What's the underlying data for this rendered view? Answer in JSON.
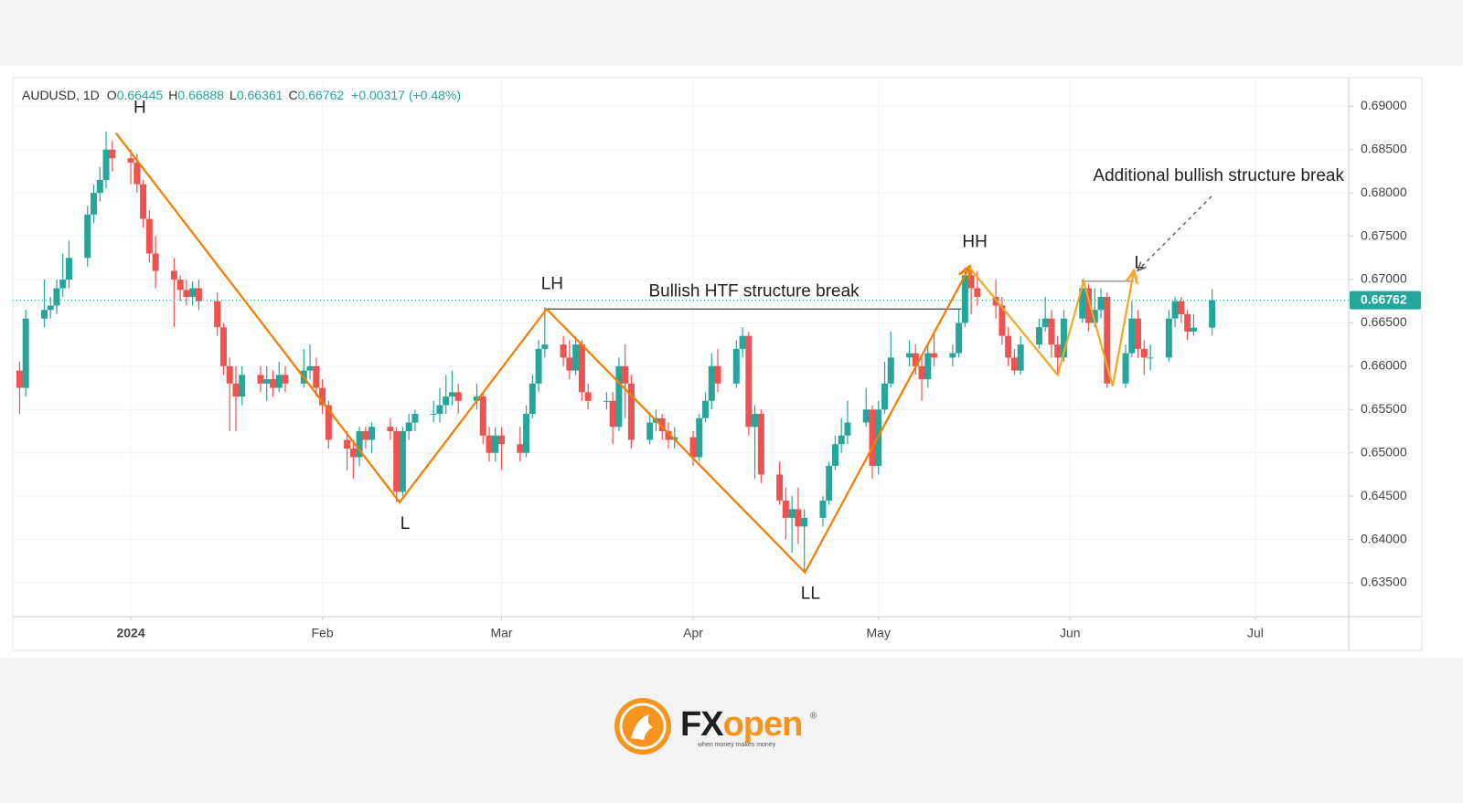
{
  "chart_data": {
    "type": "candlestick",
    "symbol": "AUDUSD, 1D",
    "ohlc": [
      {
        "label": "O",
        "value": 0.66445
      },
      {
        "label": "H",
        "value": 0.66888
      },
      {
        "label": "L",
        "value": 0.66361
      },
      {
        "label": "C",
        "value": 0.66762
      }
    ],
    "change": "+0.00317 (+0.48%)",
    "up_color": "#26a69a",
    "down_color": "#ef5350",
    "grid": true,
    "xlim": [
      -19.1,
      197.1
    ],
    "xticks": [
      {
        "value": 0,
        "label": "2024"
      },
      {
        "value": 31,
        "label": "Feb"
      },
      {
        "value": 60,
        "label": "Mar"
      },
      {
        "value": 91,
        "label": "Apr"
      },
      {
        "value": 121,
        "label": "May"
      },
      {
        "value": 152,
        "label": "Jun"
      },
      {
        "value": 182,
        "label": "Jul"
      }
    ],
    "ylim": [
      0.6311,
      0.6933
    ],
    "yticks": [
      {
        "value": 0.635,
        "label": "0.63500"
      },
      {
        "value": 0.64,
        "label": "0.64000"
      },
      {
        "value": 0.645,
        "label": "0.64500"
      },
      {
        "value": 0.65,
        "label": "0.65000"
      },
      {
        "value": 0.655,
        "label": "0.65500"
      },
      {
        "value": 0.66,
        "label": "0.66000"
      },
      {
        "value": 0.665,
        "label": "0.66500"
      },
      {
        "value": 0.67,
        "label": "0.67000"
      },
      {
        "value": 0.675,
        "label": "0.67500"
      },
      {
        "value": 0.68,
        "label": "0.68000"
      },
      {
        "value": 0.685,
        "label": "0.68500"
      },
      {
        "value": 0.69,
        "label": "0.69000"
      }
    ],
    "last_price": 0.66762,
    "x": [
      -18,
      -17,
      -14,
      -13,
      -12,
      -11,
      -10,
      -7,
      -6,
      -5,
      -4,
      -3,
      0,
      1,
      2,
      3,
      4,
      7,
      8,
      9,
      10,
      11,
      14,
      15,
      16,
      17,
      18,
      21,
      22,
      23,
      24,
      25,
      28,
      29,
      30,
      31,
      32,
      35,
      36,
      37,
      38,
      39,
      42,
      43,
      44,
      45,
      46,
      49,
      50,
      51,
      52,
      53,
      56,
      57,
      58,
      59,
      60,
      63,
      64,
      65,
      66,
      67,
      70,
      71,
      72,
      73,
      74,
      77,
      78,
      79,
      80,
      81,
      84,
      85,
      86,
      87,
      88,
      91,
      92,
      93,
      94,
      95,
      98,
      99,
      100,
      101,
      102,
      105,
      106,
      107,
      108,
      109,
      112,
      113,
      114,
      115,
      116,
      119,
      120,
      121,
      122,
      123,
      126,
      127,
      128,
      129,
      130,
      133,
      134,
      135,
      136,
      137,
      140,
      141,
      142,
      143,
      144,
      147,
      148,
      149,
      150,
      151,
      154,
      155,
      156,
      157,
      158,
      161,
      162,
      163,
      164,
      165,
      168,
      169,
      170,
      171,
      172,
      175
    ],
    "open": [
      0.6595,
      0.6575,
      0.6655,
      0.6665,
      0.667,
      0.669,
      0.67,
      0.6725,
      0.6775,
      0.68,
      0.6815,
      0.685,
      0.684,
      0.6835,
      0.681,
      0.677,
      0.673,
      0.671,
      0.67,
      0.6688,
      0.668,
      0.669,
      0.6675,
      0.6645,
      0.66,
      0.658,
      0.6565,
      0.659,
      0.658,
      0.6585,
      0.6575,
      0.659,
      0.658,
      0.6595,
      0.66,
      0.6575,
      0.6555,
      0.6515,
      0.6505,
      0.6495,
      0.6525,
      0.6515,
      0.653,
      0.6525,
      0.6455,
      0.6525,
      0.6535,
      0.6545,
      0.6545,
      0.6555,
      0.6565,
      0.657,
      0.656,
      0.6565,
      0.652,
      0.65,
      0.652,
      0.651,
      0.65,
      0.6545,
      0.658,
      0.662,
      0.6625,
      0.661,
      0.6595,
      0.6625,
      0.657,
      0.656,
      0.656,
      0.653,
      0.66,
      0.658,
      0.6515,
      0.6535,
      0.654,
      0.6525,
      0.6515,
      0.6518,
      0.6495,
      0.654,
      0.656,
      0.66,
      0.658,
      0.662,
      0.6635,
      0.653,
      0.6545,
      0.6475,
      0.6445,
      0.6425,
      0.6435,
      0.6415,
      0.6425,
      0.6445,
      0.6485,
      0.651,
      0.652,
      0.6535,
      0.655,
      0.6485,
      0.655,
      0.658,
      0.661,
      0.6615,
      0.66,
      0.6585,
      0.6615,
      0.661,
      0.6615,
      0.665,
      0.6705,
      0.669,
      0.668,
      0.667,
      0.6635,
      0.661,
      0.6595,
      0.6625,
      0.6645,
      0.6655,
      0.6625,
      0.661,
      0.6655,
      0.669,
      0.665,
      0.6665,
      0.668,
      0.658,
      0.6615,
      0.6655,
      0.662,
      0.661,
      0.661,
      0.6655,
      0.6675,
      0.666,
      0.664,
      0.66445
    ],
    "high": [
      0.6605,
      0.6665,
      0.67,
      0.668,
      0.67,
      0.673,
      0.6745,
      0.6785,
      0.681,
      0.683,
      0.6871,
      0.686,
      0.685,
      0.6845,
      0.6815,
      0.678,
      0.675,
      0.6725,
      0.6705,
      0.67,
      0.6698,
      0.67,
      0.6685,
      0.665,
      0.661,
      0.66,
      0.66,
      0.66,
      0.66,
      0.6595,
      0.6605,
      0.66,
      0.662,
      0.6625,
      0.661,
      0.6585,
      0.656,
      0.6525,
      0.6515,
      0.653,
      0.653,
      0.6535,
      0.654,
      0.653,
      0.653,
      0.6545,
      0.655,
      0.656,
      0.6575,
      0.659,
      0.6595,
      0.658,
      0.658,
      0.657,
      0.653,
      0.653,
      0.653,
      0.653,
      0.6555,
      0.659,
      0.663,
      0.6668,
      0.6635,
      0.663,
      0.6635,
      0.663,
      0.658,
      0.657,
      0.657,
      0.661,
      0.6625,
      0.659,
      0.6545,
      0.655,
      0.6545,
      0.6535,
      0.653,
      0.6525,
      0.6545,
      0.657,
      0.6615,
      0.662,
      0.663,
      0.6645,
      0.664,
      0.6555,
      0.655,
      0.649,
      0.646,
      0.645,
      0.646,
      0.6435,
      0.645,
      0.649,
      0.652,
      0.654,
      0.656,
      0.6575,
      0.6555,
      0.656,
      0.6605,
      0.664,
      0.663,
      0.6625,
      0.661,
      0.6625,
      0.664,
      0.6625,
      0.6665,
      0.6714,
      0.671,
      0.671,
      0.67,
      0.668,
      0.6645,
      0.662,
      0.6635,
      0.6655,
      0.668,
      0.6665,
      0.6635,
      0.6665,
      0.67,
      0.6695,
      0.669,
      0.669,
      0.6685,
      0.6625,
      0.6675,
      0.6665,
      0.663,
      0.6625,
      0.6665,
      0.668,
      0.668,
      0.6665,
      0.666,
      0.66888
    ],
    "low": [
      0.6545,
      0.6565,
      0.6645,
      0.6655,
      0.666,
      0.668,
      0.669,
      0.6715,
      0.6765,
      0.679,
      0.6805,
      0.6825,
      0.681,
      0.68,
      0.676,
      0.672,
      0.669,
      0.6645,
      0.6675,
      0.667,
      0.667,
      0.6665,
      0.6635,
      0.659,
      0.6525,
      0.6525,
      0.6555,
      0.657,
      0.656,
      0.6565,
      0.657,
      0.657,
      0.6575,
      0.6585,
      0.6565,
      0.6545,
      0.6505,
      0.648,
      0.647,
      0.6485,
      0.6505,
      0.65,
      0.6515,
      0.6443,
      0.645,
      0.6515,
      0.6525,
      0.6535,
      0.6535,
      0.6545,
      0.6555,
      0.6545,
      0.655,
      0.651,
      0.649,
      0.649,
      0.648,
      0.649,
      0.6495,
      0.654,
      0.657,
      0.661,
      0.66,
      0.6585,
      0.659,
      0.656,
      0.655,
      0.655,
      0.651,
      0.6525,
      0.654,
      0.6505,
      0.651,
      0.6525,
      0.6515,
      0.6505,
      0.6505,
      0.6485,
      0.649,
      0.6535,
      0.655,
      0.657,
      0.6575,
      0.661,
      0.652,
      0.647,
      0.6465,
      0.644,
      0.64,
      0.6385,
      0.6395,
      0.6362,
      0.6415,
      0.644,
      0.648,
      0.65,
      0.651,
      0.653,
      0.647,
      0.6475,
      0.6545,
      0.6575,
      0.66,
      0.659,
      0.656,
      0.6575,
      0.66,
      0.66,
      0.661,
      0.6645,
      0.666,
      0.667,
      0.6655,
      0.6625,
      0.66,
      0.659,
      0.659,
      0.662,
      0.664,
      0.661,
      0.659,
      0.6605,
      0.665,
      0.664,
      0.6645,
      0.6655,
      0.6575,
      0.6575,
      0.661,
      0.661,
      0.659,
      0.6595,
      0.6605,
      0.6645,
      0.665,
      0.663,
      0.6635,
      0.66361
    ],
    "close": [
      0.6575,
      0.6655,
      0.6665,
      0.667,
      0.669,
      0.67,
      0.6725,
      0.6775,
      0.68,
      0.6815,
      0.685,
      0.684,
      0.6835,
      0.681,
      0.677,
      0.673,
      0.671,
      0.67,
      0.6688,
      0.668,
      0.669,
      0.6675,
      0.6645,
      0.66,
      0.658,
      0.6565,
      0.659,
      0.658,
      0.6585,
      0.6575,
      0.659,
      0.658,
      0.6595,
      0.66,
      0.6575,
      0.6555,
      0.6515,
      0.6505,
      0.6495,
      0.6525,
      0.6515,
      0.653,
      0.6525,
      0.6455,
      0.6525,
      0.6535,
      0.6545,
      0.6545,
      0.6555,
      0.6565,
      0.657,
      0.656,
      0.6565,
      0.652,
      0.65,
      0.652,
      0.651,
      0.65,
      0.6545,
      0.658,
      0.662,
      0.6625,
      0.661,
      0.6595,
      0.6625,
      0.657,
      0.656,
      0.656,
      0.653,
      0.66,
      0.658,
      0.6515,
      0.6535,
      0.654,
      0.6525,
      0.6515,
      0.6518,
      0.6495,
      0.654,
      0.656,
      0.66,
      0.658,
      0.662,
      0.6635,
      0.653,
      0.6545,
      0.6475,
      0.6445,
      0.6425,
      0.6435,
      0.6415,
      0.6425,
      0.6445,
      0.6485,
      0.651,
      0.652,
      0.6535,
      0.655,
      0.6485,
      0.655,
      0.658,
      0.661,
      0.6615,
      0.66,
      0.6585,
      0.6615,
      0.661,
      0.6615,
      0.665,
      0.6705,
      0.669,
      0.668,
      0.667,
      0.6635,
      0.661,
      0.6595,
      0.6625,
      0.6645,
      0.6655,
      0.6625,
      0.661,
      0.6655,
      0.669,
      0.665,
      0.6665,
      0.668,
      0.658,
      0.6615,
      0.6655,
      0.662,
      0.661,
      0.661,
      0.6655,
      0.6675,
      0.666,
      0.664,
      0.66445,
      0.66762
    ],
    "annotations": [
      {
        "color": "#f57c00",
        "x": [
          -2.4,
          43.5,
          67.3,
          109.1,
          135.7
        ],
        "y": [
          0.6869,
          0.6443,
          0.6666,
          0.6362,
          0.6714
        ],
        "labels": [
          "H",
          "L",
          "LH",
          "LL",
          "HH"
        ]
      },
      {
        "color": "#f5a623",
        "x": [
          135.7,
          150,
          154.2,
          158.9,
          162.3
        ],
        "y": [
          0.6714,
          0.659,
          0.6698,
          0.6577,
          0.6709
        ],
        "labels": [
          null,
          null,
          null,
          null,
          "L"
        ]
      }
    ],
    "levels": [
      {
        "text": "Bullish HTF structure break",
        "x": [
          67.3,
          134.4
        ],
        "y": 0.6666,
        "color": "#444444"
      },
      {
        "x": [
          154.2,
          162.3
        ],
        "y": 0.6698,
        "color": "#888888"
      }
    ],
    "callout": "Additional bullish structure break"
  },
  "brand": {
    "fx": "FX",
    "open": "open",
    "mark": "®",
    "tagline": "when money makes money"
  }
}
